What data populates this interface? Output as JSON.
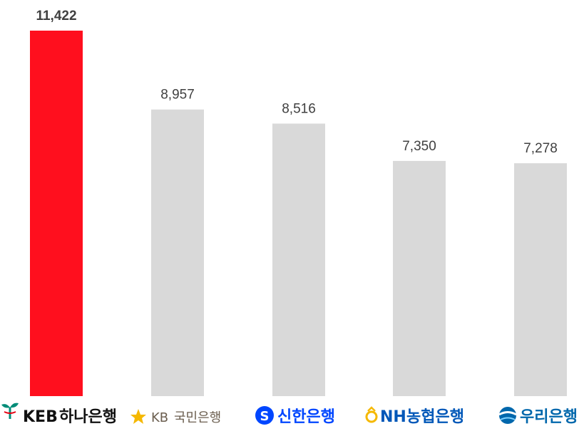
{
  "chart_data": {
    "type": "bar",
    "categories": [
      "KEB 하나은행",
      "KB국민은행",
      "신한은행",
      "NH농협은행",
      "우리은행"
    ],
    "values": [
      11422,
      8957,
      8516,
      7350,
      7278
    ],
    "value_labels": [
      "11,422",
      "8,957",
      "8,516",
      "7,350",
      "7,278"
    ],
    "title": "",
    "xlabel": "",
    "ylabel": "",
    "ylim": [
      0,
      11422
    ],
    "grid": false,
    "legend": "none"
  },
  "logos": [
    {
      "text_a": "KEB",
      "text_b": "하나은행",
      "icon": "hana-sprout-icon",
      "color": "#008C78"
    },
    {
      "text_a": "KB",
      "text_b": "국민은행",
      "icon": "kb-star-icon",
      "color": "#F5B800"
    },
    {
      "text_a": "",
      "text_b": "신한은행",
      "icon": "shinhan-s-icon",
      "color": "#0046FF"
    },
    {
      "text_a": "NH",
      "text_b": "농협은행",
      "icon": "nh-ring-icon",
      "color": "#0057B8"
    },
    {
      "text_a": "",
      "text_b": "우리은행",
      "icon": "woori-circle-icon",
      "color": "#0067AC"
    }
  ],
  "colors": {
    "highlight": "#FF0F1E",
    "bar": "#D9D9D9",
    "label": "#404040"
  }
}
